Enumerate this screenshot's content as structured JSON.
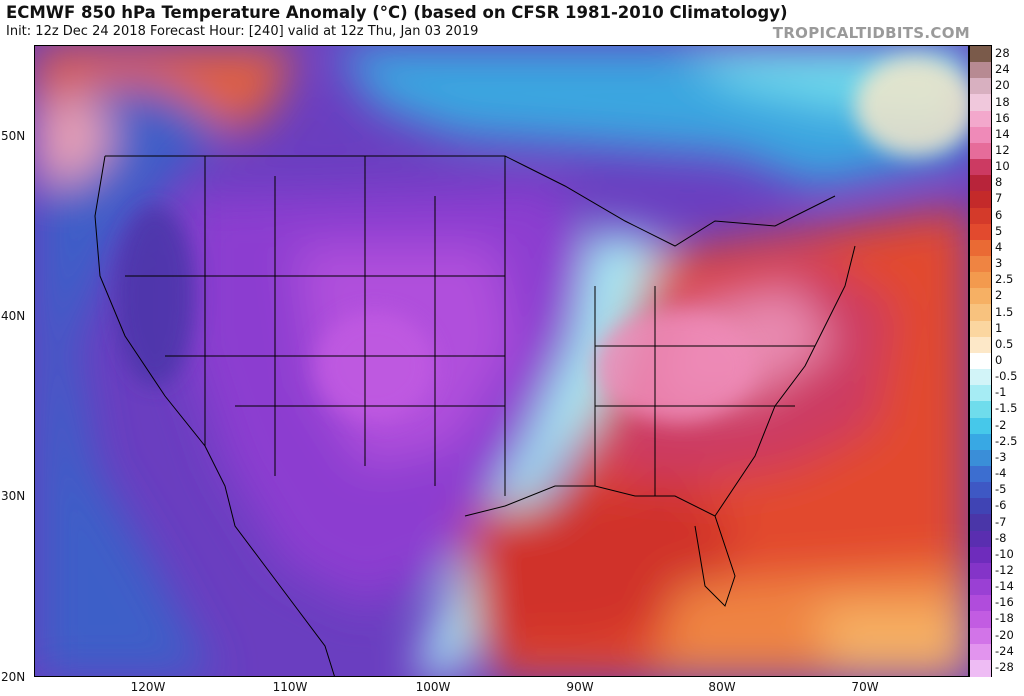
{
  "header": {
    "title": "ECMWF 850 hPa Temperature Anomaly (°C) (based on CFSR 1981-2010 Climatology)",
    "subtitle": "Init: 12z Dec 24 2018   Forecast Hour: [240]   valid at 12z Thu, Jan 03 2019",
    "watermark": "TROPICALTIDBITS.COM"
  },
  "map": {
    "lat_labels": [
      "50N",
      "40N",
      "30N",
      "20N"
    ],
    "lon_labels": [
      "120W",
      "110W",
      "100W",
      "90W",
      "80W",
      "70W"
    ],
    "extent": {
      "lon_min": -128,
      "lon_max": -62,
      "lat_min": 20,
      "lat_max": 55
    }
  },
  "colorbar": {
    "labels": [
      "28",
      "24",
      "20",
      "18",
      "16",
      "14",
      "12",
      "10",
      "8",
      "7",
      "6",
      "5",
      "4",
      "3",
      "2.5",
      "2",
      "1.5",
      "1",
      "0.5",
      "0",
      "-0.5",
      "-1",
      "-1.5",
      "-2",
      "-2.5",
      "-3",
      "-4",
      "-5",
      "-6",
      "-7",
      "-8",
      "-10",
      "-12",
      "-14",
      "-16",
      "-18",
      "-20",
      "-24",
      "-28"
    ],
    "colors": [
      "#7a5a4a",
      "#b78a92",
      "#d8b0c0",
      "#f0c8dc",
      "#f3a8cc",
      "#ef8ab8",
      "#e66c9a",
      "#cc3a62",
      "#b8243a",
      "#c42a2a",
      "#d43a2a",
      "#e24a2e",
      "#ea6a34",
      "#ef8442",
      "#f39a4e",
      "#f6b064",
      "#f8c27e",
      "#fbd6a0",
      "#fde8c8",
      "#ffffff",
      "#d2f4f8",
      "#a6ecf4",
      "#6fdcec",
      "#46c8ea",
      "#38a8e4",
      "#3a8ed8",
      "#3c6ed0",
      "#3e58c4",
      "#4044b4",
      "#4a36a8",
      "#5a2eb0",
      "#6e2cbc",
      "#8434c8",
      "#9a40d4",
      "#b04cdc",
      "#c25ce2",
      "#d274e8",
      "#e294ee",
      "#eebcf4"
    ]
  }
}
